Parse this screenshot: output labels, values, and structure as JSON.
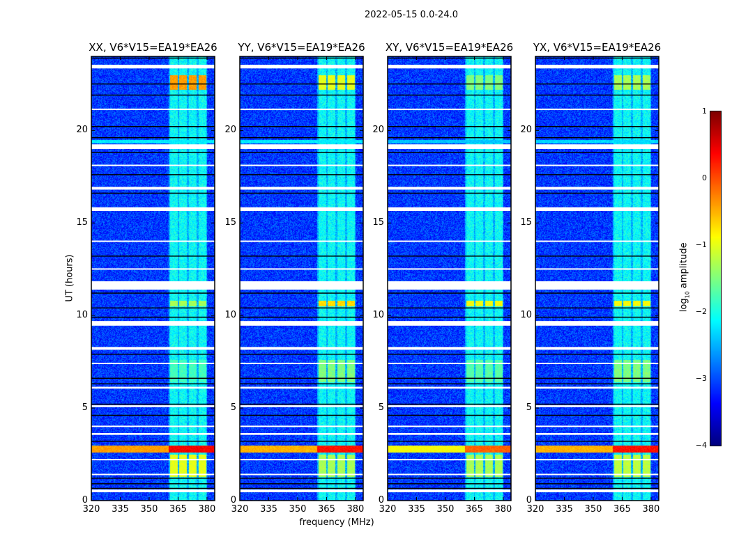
{
  "chart_data": {
    "type": "heatmap",
    "title": "2022-05-15 0.0-24.0",
    "xlabel": "frequency (MHz)",
    "ylabel": "UT (hours)",
    "xlim": [
      320,
      384
    ],
    "ylim": [
      0,
      24
    ],
    "xticks": [
      "320",
      "335",
      "350",
      "365",
      "380"
    ],
    "xtick_values": [
      320,
      335,
      350,
      365,
      380
    ],
    "yticks": [
      "0",
      "5",
      "10",
      "15",
      "20"
    ],
    "ytick_values": [
      0,
      5,
      10,
      15,
      20
    ],
    "colorbar": {
      "label": "log10 amplitude",
      "label_main": "log",
      "label_sub": "10",
      "label_rest": " amplitude",
      "range": [
        -4,
        1
      ],
      "ticks": [
        "1",
        "0",
        "−1",
        "−2",
        "−3",
        "−4"
      ],
      "tick_values": [
        1,
        0,
        -1,
        -2,
        -3,
        -4
      ],
      "colormap": "jet"
    },
    "background_level": -3.1,
    "rfi_band_level": -2.3,
    "rfi_band_mhz": [
      360,
      380
    ],
    "blocks_mhz": [
      [
        360.5,
        364.5
      ],
      [
        365.5,
        369.5
      ],
      [
        370.5,
        374.5
      ],
      [
        375.5,
        379.5
      ]
    ],
    "flagged_gaps_hours": [
      [
        23.35,
        23.55
      ],
      [
        21.1,
        21.18
      ],
      [
        19.0,
        19.25
      ],
      [
        18.1,
        18.15
      ],
      [
        16.8,
        16.95
      ],
      [
        15.65,
        15.85
      ],
      [
        14.0,
        14.05
      ],
      [
        12.5,
        12.55
      ],
      [
        11.4,
        11.85
      ],
      [
        9.45,
        9.7
      ],
      [
        8.15,
        8.3
      ],
      [
        7.4,
        7.45
      ],
      [
        6.05,
        6.15
      ],
      [
        5.05,
        5.15
      ],
      [
        4.0,
        4.05
      ],
      [
        3.55,
        3.65
      ],
      [
        2.2,
        2.25
      ],
      [
        1.4,
        1.45
      ],
      [
        0.45,
        0.6
      ]
    ],
    "dark_lines_hours": [
      23.9,
      22.5,
      21.9,
      20.2,
      19.6,
      18.8,
      17.6,
      16.6,
      13.2,
      11.2,
      10.4,
      9.9,
      7.9,
      6.6,
      6.3,
      5.2,
      4.6,
      3.2,
      1.2,
      0.9,
      0.65
    ],
    "panels": [
      {
        "title": "XX, V6*V15=EA19*EA26",
        "levels": {
          "22.2-23.0": -0.4,
          "10.5-10.8": -1.3,
          "6.4-7.6": -1.8,
          "1.3-2.5": -1.0,
          "2.6-3.0": 0.2,
          "19.3-19.5": -2.2
        }
      },
      {
        "title": "YY, V6*V15=EA19*EA26",
        "levels": {
          "22.2-23.0": -1.0,
          "10.5-10.8": -0.7,
          "6.4-7.6": -1.5,
          "1.3-2.5": -1.3,
          "2.6-3.0": 0.1,
          "19.3-19.5": -2.2
        }
      },
      {
        "title": "XY, V6*V15=EA19*EA26",
        "levels": {
          "22.2-23.0": -1.5,
          "10.5-10.8": -0.9,
          "6.4-7.6": -1.7,
          "1.3-2.5": -1.3,
          "2.6-3.0": -0.3,
          "19.3-19.5": -2.4
        }
      },
      {
        "title": "YX, V6*V15=EA19*EA26",
        "levels": {
          "22.2-23.0": -1.3,
          "10.5-10.8": -0.9,
          "6.4-7.6": -1.5,
          "1.3-2.5": -1.2,
          "2.6-3.0": 0.1,
          "19.3-19.5": -2.3
        }
      }
    ]
  }
}
